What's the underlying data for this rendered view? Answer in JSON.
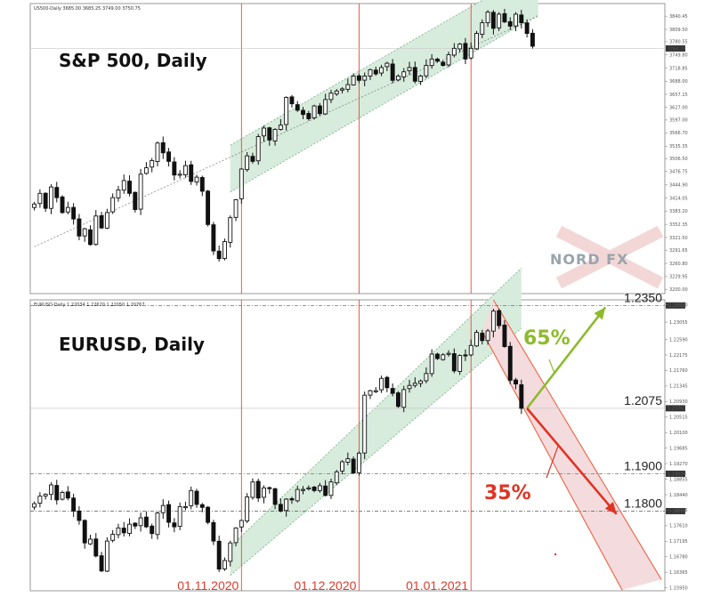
{
  "chart_data": [
    {
      "type": "candlestick",
      "title": "S&P 500, Daily",
      "header": "US500-Daily 3685.00 3685.25 3749.00 3750.75",
      "last_price_label": "3764.75",
      "ylim": [
        3190,
        3870
      ],
      "y_ticks": [
        "3840.45",
        "3809.50",
        "3780.55",
        "3749.80",
        "3718.85",
        "3688.00",
        "3657.15",
        "3627.00",
        "3597.00",
        "3566.70",
        "3535.35",
        "3506.50",
        "3476.75",
        "3444.90",
        "3414.05",
        "3383.20",
        "3352.35",
        "3321.50",
        "3291.65",
        "3260.80",
        "3229.95",
        "3200.00"
      ],
      "channel": {
        "lower": [
          [
            35,
            3428
          ],
          [
            90,
            3843
          ]
        ],
        "upper": [
          [
            35,
            3538
          ],
          [
            90,
            3953
          ]
        ]
      },
      "trend_support": [
        [
          0,
          3300
        ],
        [
          90,
          3840
        ]
      ],
      "close": [
        3400,
        3425,
        3390,
        3440,
        3415,
        3380,
        3392,
        3365,
        3325,
        3342,
        3305,
        3372,
        3344,
        3380,
        3415,
        3433,
        3455,
        3425,
        3387,
        3470,
        3485,
        3502,
        3543,
        3520,
        3500,
        3468,
        3470,
        3490,
        3453,
        3463,
        3430,
        3352,
        3290,
        3272,
        3312,
        3368,
        3410,
        3482,
        3513,
        3500,
        3558,
        3578,
        3550,
        3575,
        3585,
        3650,
        3635,
        3620,
        3610,
        3600,
        3630,
        3612,
        3645,
        3660,
        3665,
        3670,
        3680,
        3700,
        3690,
        3700,
        3715,
        3705,
        3720,
        3730,
        3690,
        3700,
        3710,
        3720,
        3688,
        3700,
        3725,
        3740,
        3735,
        3725,
        3750,
        3765,
        3775,
        3740,
        3765,
        3800,
        3825,
        3850,
        3812,
        3845,
        3827,
        3817,
        3845,
        3825,
        3800,
        3770
      ]
    },
    {
      "type": "candlestick",
      "title": "EURUSD, Daily",
      "header": "EURUSD-Daily 1.22034 1.22620 1.22050 1.20767",
      "last_price_label": "1.20767",
      "ylim": [
        1.1587,
        1.2365
      ],
      "y_ticks": [
        "1.23520",
        "1.23055",
        "1.22590",
        "1.22175",
        "1.21760",
        "1.21345",
        "1.20930",
        "1.20515",
        "1.20100",
        "1.19685",
        "1.19270",
        "1.18855",
        "1.18440",
        "1.18025",
        "1.17610",
        "1.17195",
        "1.16780",
        "1.16365",
        "1.15950"
      ],
      "levels": [
        {
          "value": 1.235,
          "label": "1.2350",
          "tag": "1.23500"
        },
        {
          "value": 1.2075,
          "label": "1.2075",
          "tag": "1.20767"
        },
        {
          "value": 1.19,
          "label": "1.1900",
          "tag": "1.19000"
        },
        {
          "value": 1.18,
          "label": "1.1800",
          "tag": "1.18000"
        }
      ],
      "date_labels": [
        "01.11.2020",
        "01.12.2020",
        "01.01.2021"
      ],
      "scenarios": [
        {
          "label": "65%",
          "color": "#8dbb2c",
          "from": [
            88,
            1.2075
          ],
          "to": [
            102,
            1.2345
          ]
        },
        {
          "label": "35%",
          "color": "#e03424",
          "from": [
            88,
            1.2075
          ],
          "to": [
            104,
            1.1792
          ]
        }
      ],
      "channel": {
        "lower": [
          [
            35,
            1.1628
          ],
          [
            87,
            1.2289
          ]
        ],
        "upper": [
          [
            35,
            1.1705
          ],
          [
            87,
            1.245
          ]
        ]
      },
      "down_channel": {
        "upper": [
          [
            82,
            1.2365
          ],
          [
            112,
            1.1617
          ]
        ],
        "lower": [
          [
            80,
            1.228
          ],
          [
            105,
            1.1589
          ]
        ]
      },
      "close": [
        1.182,
        1.184,
        1.1845,
        1.187,
        1.183,
        1.185,
        1.1835,
        1.18,
        1.1775,
        1.1715,
        1.1725,
        1.168,
        1.164,
        1.172,
        1.1738,
        1.1755,
        1.1742,
        1.1765,
        1.176,
        1.1782,
        1.1758,
        1.174,
        1.1795,
        1.1815,
        1.177,
        1.1758,
        1.1812,
        1.1812,
        1.1855,
        1.1818,
        1.181,
        1.177,
        1.172,
        1.1645,
        1.1668,
        1.1715,
        1.1755,
        1.1775,
        1.1838,
        1.1878,
        1.1835,
        1.1862,
        1.1862,
        1.1818,
        1.18,
        1.1832,
        1.183,
        1.1858,
        1.1858,
        1.1862,
        1.1855,
        1.1868,
        1.1842,
        1.1878,
        1.1905,
        1.1932,
        1.194,
        1.1902,
        1.1955,
        1.211,
        1.2122,
        1.2122,
        1.2155,
        1.213,
        1.2115,
        1.208,
        1.2125,
        1.2136,
        1.2142,
        1.2148,
        1.2168,
        1.222,
        1.2208,
        1.2218,
        1.2222,
        1.2175,
        1.2216,
        1.2215,
        1.2243,
        1.2278,
        1.2256,
        1.2282,
        1.2335,
        1.2296,
        1.224,
        1.215,
        1.214,
        1.2075
      ]
    }
  ],
  "logo": {
    "text": "NORD FX"
  }
}
